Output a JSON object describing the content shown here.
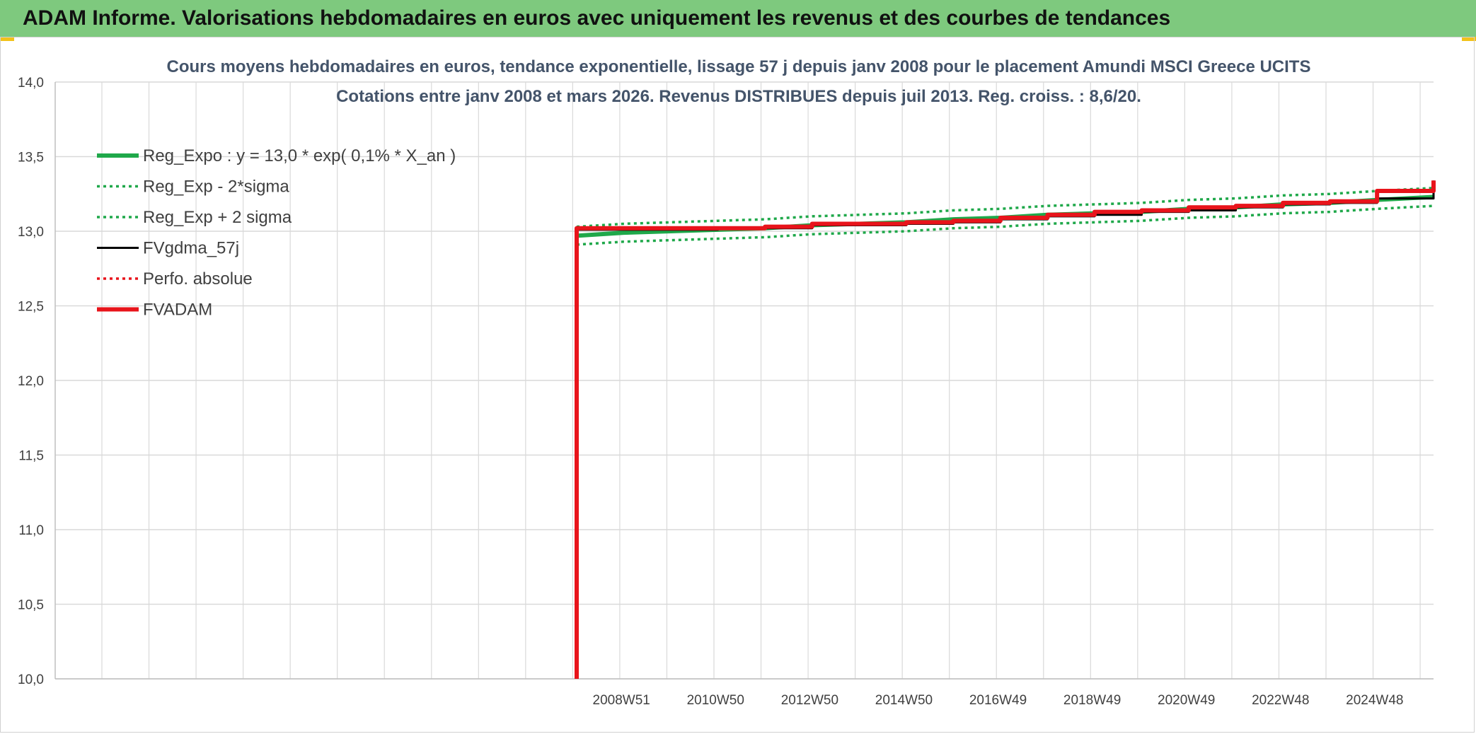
{
  "banner": {
    "title": "ADAM Informe. Valorisations hebdomadaires en euros avec uniquement les revenus et des courbes de tendances"
  },
  "colors": {
    "banner_bg": "#7ec97e",
    "green": "#1fa84a",
    "red": "#e8141b",
    "black": "#000000",
    "grid": "#d9d9d9"
  },
  "chart_data": {
    "type": "line",
    "title": "Cours moyens hebdomadaires en euros, tendance exponentielle, lissage 57 j depuis janv 2008 pour le placement Amundi MSCI Greece UCITS",
    "subtitle": "Cotations entre janv 2008 et mars 2026. Revenus DISTRIBUES depuis juil 2013. Reg. croiss. : 8,6/20.",
    "ylim": [
      10,
      14
    ],
    "y_ticks": [
      "10,0",
      "10,5",
      "11,0",
      "11,5",
      "12,0",
      "12,5",
      "13,0",
      "13,5",
      "14,0"
    ],
    "x_ticks": [
      "2008W51",
      "2010W50",
      "2012W50",
      "2014W50",
      "2016W49",
      "2018W49",
      "2020W49",
      "2022W48",
      "2024W48"
    ],
    "grid": true,
    "legend_position": "top-left",
    "legend": [
      {
        "label": "Reg_Expo : y = 13,0 * exp( 0,1% *  X_an )",
        "color": "#1fa84a",
        "style": "thick"
      },
      {
        "label": "Reg_Exp - 2*sigma",
        "color": "#1fa84a",
        "style": "dotted"
      },
      {
        "label": "Reg_Exp + 2 sigma",
        "color": "#1fa84a",
        "style": "dotted"
      },
      {
        "label": "FVgdma_57j",
        "color": "#000000",
        "style": "solid"
      },
      {
        "label": "Perfo. absolue",
        "color": "#e8141b",
        "style": "dotted"
      },
      {
        "label": "FVADAM",
        "color": "#e8141b",
        "style": "thick"
      }
    ],
    "x_years": [
      2008.0,
      2009,
      2010,
      2011,
      2012,
      2013,
      2014,
      2015,
      2016,
      2017,
      2018,
      2019,
      2020,
      2021,
      2022,
      2023,
      2024,
      2025,
      2026.2
    ],
    "series": [
      {
        "name": "Reg_Expo : y = 13,0 * exp( 0,1% *  X_an )",
        "values": [
          12.97,
          12.99,
          13.0,
          13.01,
          13.02,
          13.04,
          13.05,
          13.06,
          13.08,
          13.09,
          13.11,
          13.12,
          13.13,
          13.15,
          13.16,
          13.18,
          13.19,
          13.21,
          13.23
        ]
      },
      {
        "name": "Reg_Exp - 2*sigma",
        "values": [
          12.91,
          12.93,
          12.94,
          12.95,
          12.96,
          12.98,
          12.99,
          13.0,
          13.02,
          13.03,
          13.05,
          13.06,
          13.07,
          13.09,
          13.1,
          13.12,
          13.13,
          13.15,
          13.17
        ]
      },
      {
        "name": "Reg_Exp + 2 sigma",
        "values": [
          13.03,
          13.05,
          13.06,
          13.07,
          13.08,
          13.1,
          13.11,
          13.12,
          13.14,
          13.15,
          13.17,
          13.18,
          13.19,
          13.21,
          13.22,
          13.24,
          13.25,
          13.27,
          13.29
        ]
      },
      {
        "name": "FVgdma_57j",
        "values": [
          13.01,
          13.01,
          13.01,
          13.02,
          13.02,
          13.04,
          13.04,
          13.05,
          13.06,
          13.08,
          13.1,
          13.11,
          13.13,
          13.14,
          13.16,
          13.18,
          13.19,
          13.22,
          13.34
        ]
      },
      {
        "name": "FVADAM",
        "values": [
          13.02,
          13.02,
          13.02,
          13.02,
          13.03,
          13.05,
          13.05,
          13.06,
          13.07,
          13.09,
          13.11,
          13.13,
          13.14,
          13.16,
          13.17,
          13.19,
          13.2,
          13.27,
          13.34
        ]
      }
    ]
  }
}
